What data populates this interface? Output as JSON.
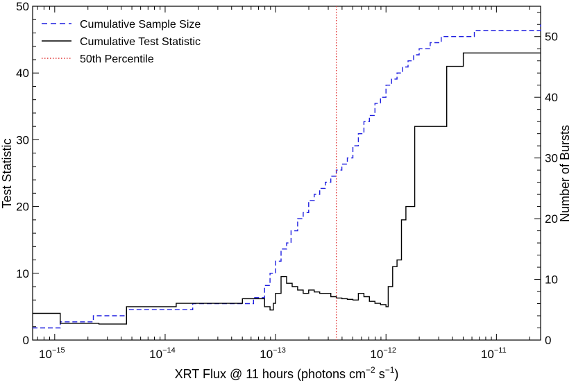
{
  "chart_data": {
    "type": "line",
    "title": "",
    "xlabel_main": "XRT Flux @ 11 hours (photons cm",
    "xlabel_sup1": "−2",
    "xlabel_mid": " s",
    "xlabel_sup2": "−1",
    "xlabel_end": ")",
    "ylabel_left": "Test Statistic",
    "ylabel_right": "Number of Bursts",
    "xscale": "log10",
    "xlim_log10": [
      -15.2,
      -10.6
    ],
    "ylim_left": [
      0,
      50
    ],
    "ylim_right": [
      0,
      55
    ],
    "x_ticks": [
      {
        "log10": -15,
        "base": "10",
        "exp": "−15"
      },
      {
        "log10": -14,
        "base": "10",
        "exp": "−14"
      },
      {
        "log10": -13,
        "base": "10",
        "exp": "−13"
      },
      {
        "log10": -12,
        "base": "10",
        "exp": "−12"
      },
      {
        "log10": -11,
        "base": "10",
        "exp": "−11"
      }
    ],
    "y_ticks_left": [
      0,
      10,
      20,
      30,
      40,
      50
    ],
    "y_ticks_right": [
      0,
      10,
      20,
      30,
      40,
      50
    ],
    "legend": {
      "position": "top-left",
      "entries": [
        {
          "label": "Cumulative Sample Size",
          "color": "#1f1fe0",
          "style": "dashed"
        },
        {
          "label": "Cumulative Test Statistic",
          "color": "#000000",
          "style": "solid"
        },
        {
          "label": "50th Percentile",
          "color": "#e03030",
          "style": "dotted"
        }
      ]
    },
    "percentile_log10": -12.45,
    "series": [
      {
        "name": "Cumulative Sample Size",
        "axis": "right",
        "color": "#1f1fe0",
        "style": "dashed",
        "steps_log10x": [
          -15.2,
          -14.95,
          -14.65,
          -14.35,
          -13.75,
          -13.2,
          -13.1,
          -13.05,
          -13.0,
          -12.95,
          -12.9,
          -12.86,
          -12.8,
          -12.75,
          -12.7,
          -12.65,
          -12.6,
          -12.55,
          -12.5,
          -12.45,
          -12.4,
          -12.35,
          -12.3,
          -12.25,
          -12.2,
          -12.15,
          -12.1,
          -12.05,
          -12.0,
          -11.95,
          -11.9,
          -11.85,
          -11.8,
          -11.75,
          -11.7,
          -11.6,
          -11.5,
          -11.4,
          -11.3,
          -11.2,
          -11.1,
          -10.6
        ],
        "steps_y": [
          2,
          3,
          4,
          5,
          6,
          7,
          9,
          11,
          13,
          15,
          16,
          18,
          20,
          21,
          23,
          24,
          25,
          26,
          27,
          28,
          29,
          30,
          32,
          34,
          36,
          37,
          39,
          40,
          42,
          43,
          44,
          45,
          46,
          47,
          48,
          49,
          50,
          50,
          50,
          51,
          51,
          52
        ]
      },
      {
        "name": "Cumulative Test Statistic",
        "axis": "left",
        "color": "#000000",
        "style": "solid",
        "steps_log10x": [
          -15.2,
          -14.95,
          -14.6,
          -14.35,
          -13.9,
          -13.3,
          -13.1,
          -13.05,
          -13.02,
          -13.0,
          -12.95,
          -12.9,
          -12.85,
          -12.8,
          -12.75,
          -12.7,
          -12.65,
          -12.6,
          -12.5,
          -12.45,
          -12.4,
          -12.35,
          -12.3,
          -12.25,
          -12.2,
          -12.15,
          -12.1,
          -12.05,
          -12.0,
          -11.98,
          -11.94,
          -11.9,
          -11.86,
          -11.82,
          -11.78,
          -11.74,
          -11.6,
          -11.45,
          -11.3,
          -11.2,
          -11.1,
          -10.6
        ],
        "steps_y": [
          4,
          2.5,
          2.4,
          5,
          5.5,
          6.2,
          5,
          4.5,
          5.5,
          7,
          9.5,
          8.5,
          8,
          7.5,
          7,
          7.5,
          7.2,
          7,
          6.5,
          6.3,
          6.2,
          6.1,
          6,
          7,
          6.5,
          5.8,
          5.5,
          5.3,
          5,
          8,
          11,
          12,
          18,
          20,
          20,
          32,
          32,
          41,
          43,
          43,
          43,
          43
        ]
      }
    ]
  }
}
